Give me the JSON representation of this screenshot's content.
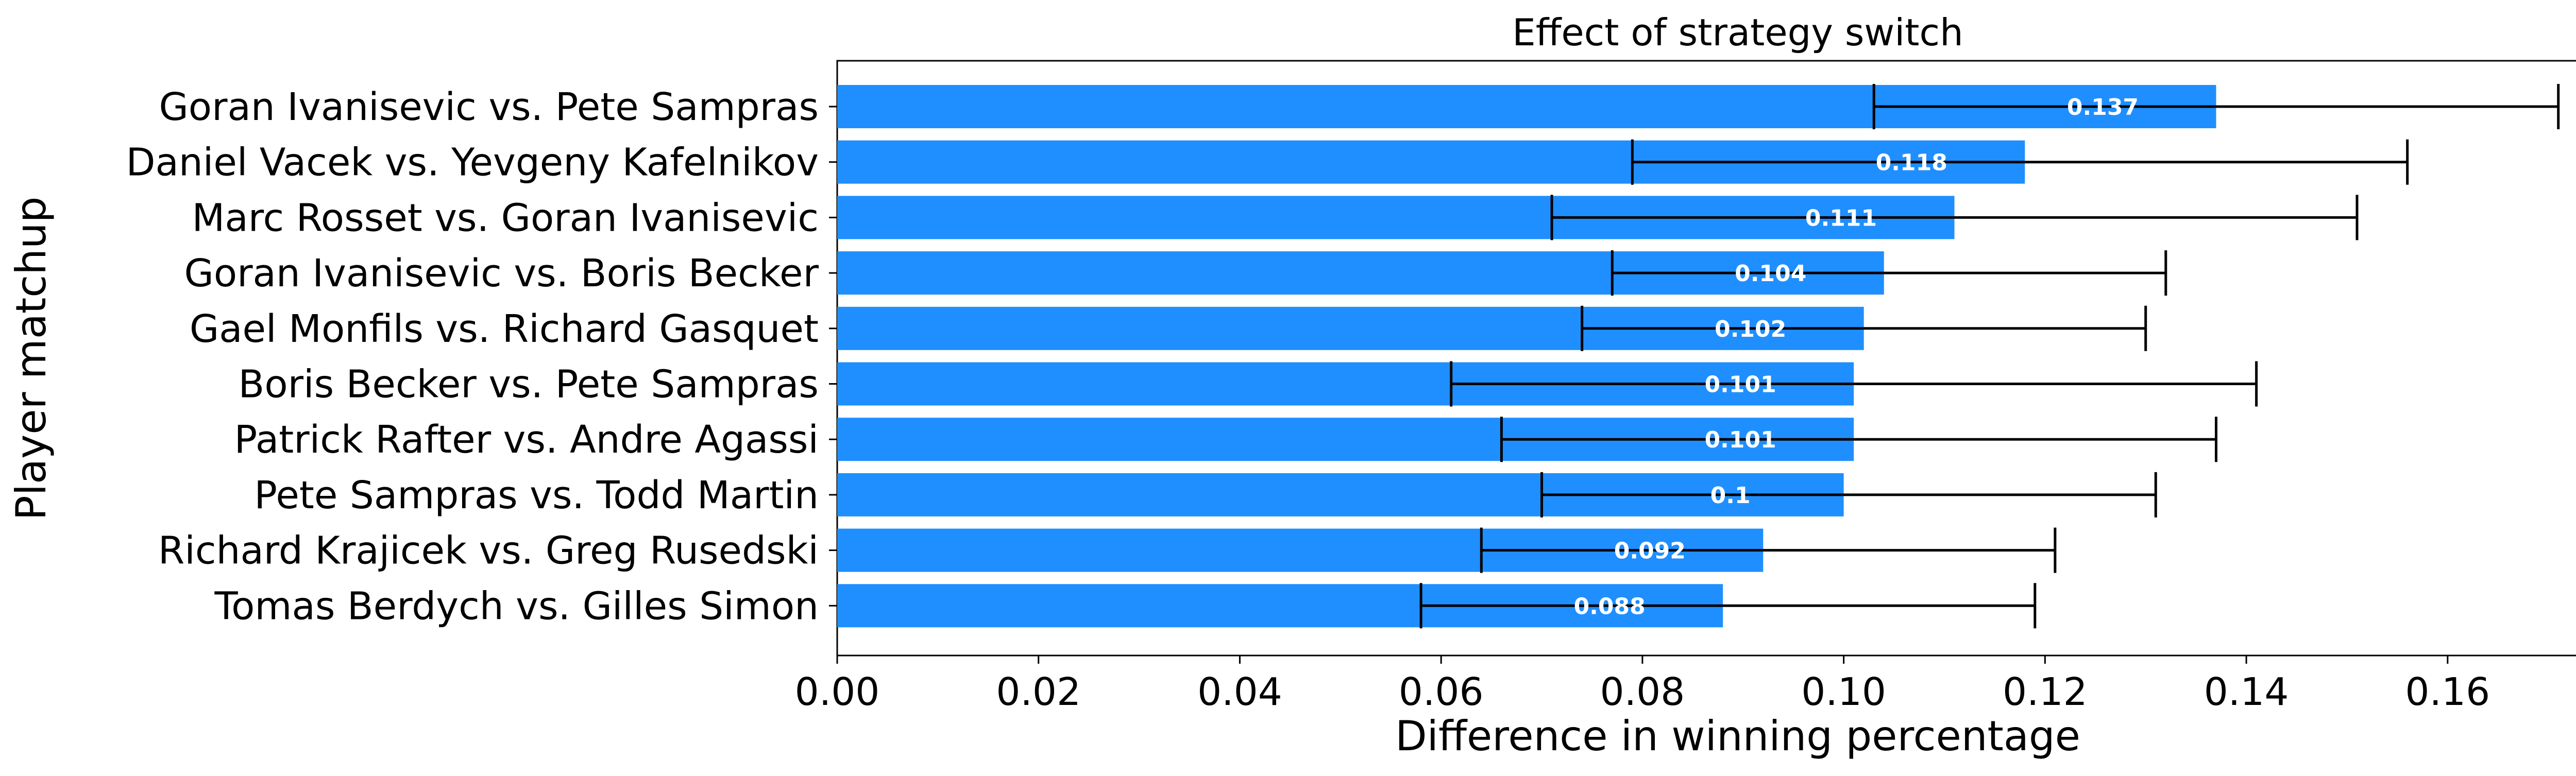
{
  "chart_data": {
    "type": "bar",
    "orientation": "horizontal",
    "title": "Effect of strategy switch",
    "xlabel": "Difference in winning percentage",
    "ylabel": "Player matchup",
    "xlim": [
      0,
      0.179
    ],
    "xticks": [
      0.0,
      0.02,
      0.04,
      0.06,
      0.08,
      0.1,
      0.12,
      0.14,
      0.16
    ],
    "xtick_labels": [
      "0.00",
      "0.02",
      "0.04",
      "0.06",
      "0.08",
      "0.10",
      "0.12",
      "0.14",
      "0.16"
    ],
    "grid": false,
    "bar_color": "#1f8fff",
    "error_color": "#000000",
    "label_color": "#ffffff",
    "categories": [
      "Goran Ivanisevic vs. Pete Sampras",
      "Daniel Vacek vs. Yevgeny Kafelnikov",
      "Marc Rosset vs. Goran Ivanisevic",
      "Goran Ivanisevic vs. Boris Becker",
      "Gael Monfils vs. Richard Gasquet",
      "Boris Becker vs. Pete Sampras",
      "Patrick Rafter vs. Andre Agassi",
      "Pete Sampras vs. Todd Martin",
      "Richard Krajicek vs. Greg Rusedski",
      "Tomas Berdych vs. Gilles Simon"
    ],
    "values": [
      0.137,
      0.118,
      0.111,
      0.104,
      0.102,
      0.101,
      0.101,
      0.1,
      0.092,
      0.088
    ],
    "value_labels": [
      "0.137",
      "0.118",
      "0.111",
      "0.104",
      "0.102",
      "0.101",
      "0.101",
      "0.1",
      "0.092",
      "0.088"
    ],
    "error_low": [
      0.103,
      0.079,
      0.071,
      0.077,
      0.074,
      0.061,
      0.066,
      0.07,
      0.064,
      0.058
    ],
    "error_high": [
      0.171,
      0.156,
      0.151,
      0.132,
      0.13,
      0.141,
      0.137,
      0.131,
      0.121,
      0.119
    ]
  }
}
